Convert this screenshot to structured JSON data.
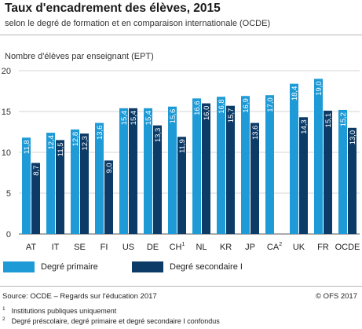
{
  "title": "Taux d'encadrement des élèves, 2015",
  "subtitle": "selon le degré de formation et en comparaison internationale (OCDE)",
  "footer": {
    "source": "Source: OCDE – Regards sur l'éducation 2017",
    "copyright": "© OFS 2017",
    "notes": [
      {
        "mark": "1",
        "text": "Institutions publiques uniquement"
      },
      {
        "mark": "2",
        "text": "Degré préscolaire, degré primaire et degré secondaire I confondus"
      }
    ]
  },
  "colors": {
    "primary": "#1e9ad6",
    "secondary": "#0c3b67",
    "grid": "#d6d6d6"
  },
  "chart_data": {
    "type": "bar",
    "ylabel": "Nombre d'élèves par enseignant (EPT)",
    "ylim": [
      0,
      20
    ],
    "yticks": [
      0,
      5,
      10,
      15,
      20
    ],
    "grid": true,
    "legend_position": "bottom",
    "categories": [
      {
        "label": "AT",
        "sup": ""
      },
      {
        "label": "IT",
        "sup": ""
      },
      {
        "label": "SE",
        "sup": ""
      },
      {
        "label": "FI",
        "sup": ""
      },
      {
        "label": "US",
        "sup": ""
      },
      {
        "label": "DE",
        "sup": ""
      },
      {
        "label": "CH",
        "sup": "1"
      },
      {
        "label": "NL",
        "sup": ""
      },
      {
        "label": "KR",
        "sup": ""
      },
      {
        "label": "JP",
        "sup": ""
      },
      {
        "label": "CA",
        "sup": "2"
      },
      {
        "label": "UK",
        "sup": ""
      },
      {
        "label": "FR",
        "sup": ""
      },
      {
        "label": "OCDE",
        "sup": ""
      }
    ],
    "series": [
      {
        "name": "Degré primaire",
        "color": "#1e9ad6",
        "values": [
          11.8,
          12.4,
          12.8,
          13.6,
          15.4,
          15.4,
          15.6,
          16.6,
          16.8,
          16.9,
          17.0,
          18.4,
          19.0,
          15.2
        ],
        "labels": [
          "11,8",
          "12,4",
          "12,8",
          "13,6",
          "15,4",
          "15,4",
          "15,6",
          "16,6",
          "16,8",
          "16,9",
          "17,0",
          "18,4",
          "19,0",
          "15,2"
        ]
      },
      {
        "name": "Degré secondaire I",
        "color": "#0c3b67",
        "values": [
          8.7,
          11.5,
          12.3,
          9.0,
          15.4,
          13.3,
          11.9,
          16.0,
          15.7,
          13.6,
          null,
          14.3,
          15.1,
          13.0
        ],
        "labels": [
          "8,7",
          "11,5",
          "12,3",
          "9,0",
          "15,4",
          "13,3",
          "11,9",
          "16,0",
          "15,7",
          "13,6",
          null,
          "14,3",
          "15,1",
          "13,0"
        ]
      }
    ]
  }
}
